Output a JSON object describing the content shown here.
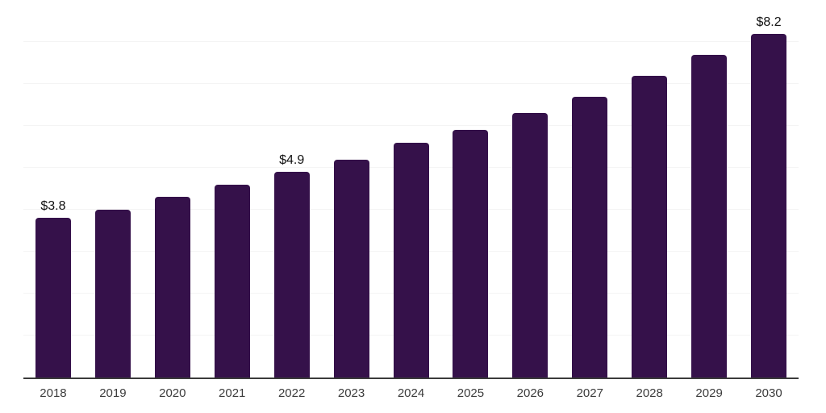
{
  "chart_data": {
    "type": "bar",
    "title": "",
    "xlabel": "",
    "ylabel": "",
    "categories": [
      "2018",
      "2019",
      "2020",
      "2021",
      "2022",
      "2023",
      "2024",
      "2025",
      "2026",
      "2027",
      "2028",
      "2029",
      "2030"
    ],
    "values": [
      3.8,
      4.0,
      4.3,
      4.6,
      4.9,
      5.2,
      5.6,
      5.9,
      6.3,
      6.7,
      7.2,
      7.7,
      8.2
    ],
    "data_labels": {
      "2018": "$3.8",
      "2022": "$4.9",
      "2030": "$8.2"
    },
    "ylim": [
      0,
      9
    ],
    "gridline_interval": 1,
    "grid": true,
    "legend": "none",
    "colors": {
      "bar": "#35114a",
      "axis_line": "#3a3a3a",
      "gridline": "#f4f4f4",
      "x_label": "#3c3c3c",
      "value_label": "#111111",
      "background": "#ffffff"
    }
  }
}
